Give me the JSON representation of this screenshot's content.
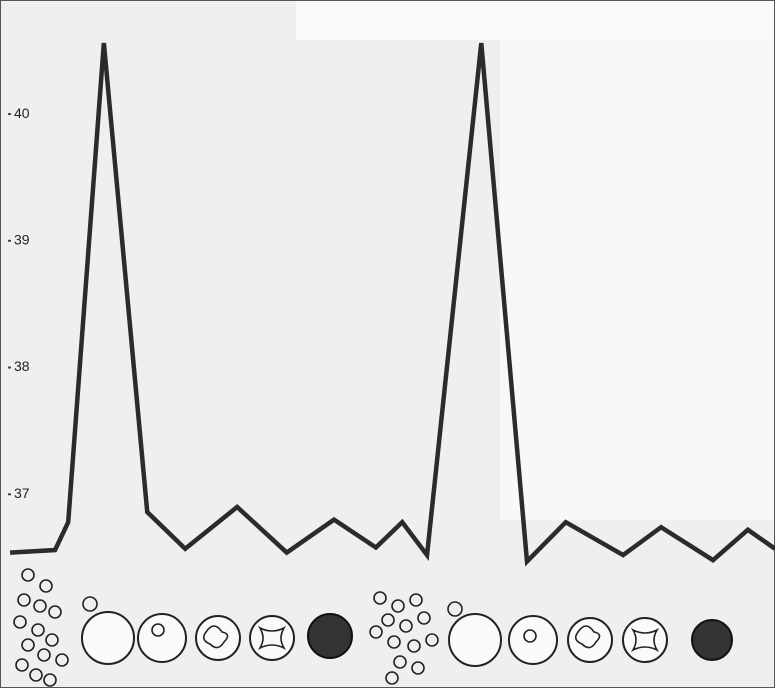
{
  "chart_data": {
    "type": "line",
    "x": [
      1.3,
      7.1,
      8.8,
      13.4,
      19,
      23.9,
      30.6,
      37,
      43.1,
      48.5,
      51.9,
      55.1,
      62.1,
      68,
      73,
      80.4,
      85.3,
      92,
      96.5,
      100
    ],
    "series": [
      {
        "color": "#2b2b2b",
        "values": [
          36.54,
          36.56,
          36.78,
          40.56,
          36.86,
          36.57,
          36.9,
          36.54,
          36.8,
          36.58,
          36.78,
          36.52,
          40.56,
          36.47,
          36.78,
          36.52,
          36.74,
          36.48,
          36.72,
          36.57
        ]
      }
    ],
    "xlim": [
      0,
      100
    ],
    "ylim": [
      36.3,
      40.9
    ],
    "yticks": [
      37,
      38,
      39,
      40
    ],
    "grid": false
  }
}
